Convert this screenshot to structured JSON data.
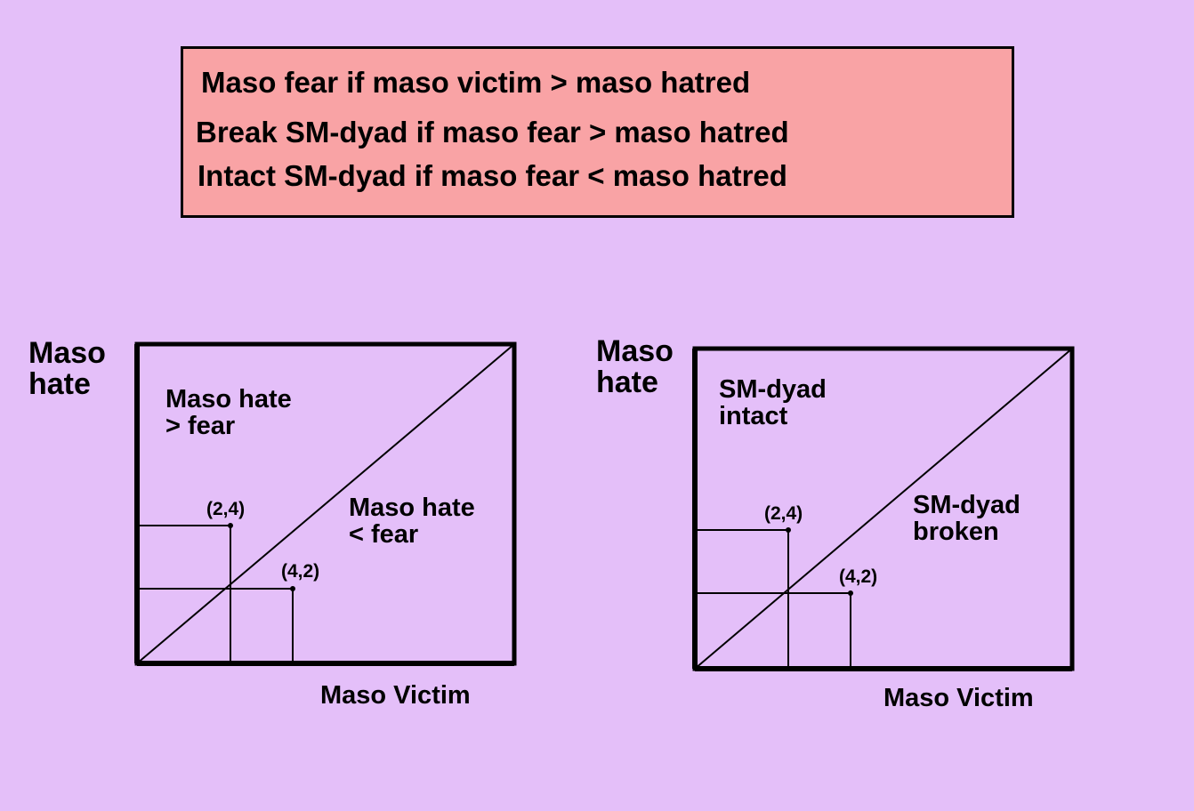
{
  "rules": [
    "Maso fear if maso victim > maso hatred",
    "Break SM-dyad if maso fear > maso hatred",
    "Intact SM-dyad if maso fear < maso hatred"
  ],
  "left_diagram": {
    "y_axis_label": "Maso\nhate",
    "x_axis_label": "Maso Victim",
    "upper_region_label": "Maso hate\n > fear",
    "lower_region_label": "Maso hate\n< fear",
    "point_a_label": "(2,4)",
    "point_b_label": "(4,2)"
  },
  "right_diagram": {
    "y_axis_label": "Maso\nhate",
    "x_axis_label": "Maso Victim",
    "upper_region_label": "SM-dyad\n intact",
    "lower_region_label": "SM-dyad\nbroken",
    "point_a_label": "(2,4)",
    "point_b_label": "(4,2)"
  },
  "colors": {
    "background": "#e4bff9",
    "rules_box": "#f9a3a5",
    "ink": "#000000"
  }
}
